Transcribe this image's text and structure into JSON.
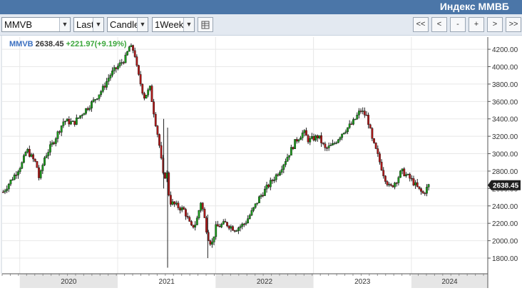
{
  "window": {
    "title": "Индекс ММВБ"
  },
  "toolbar": {
    "symbol": "MMVB",
    "price_type": "Last",
    "chart_type": "Candle",
    "interval": "1Week",
    "settings_icon": "table-icon",
    "nav_buttons": [
      "<<",
      "<",
      "-",
      "+",
      ">",
      ">>"
    ]
  },
  "legend": {
    "symbol": "MMVB",
    "last": "2638.45",
    "change": "+221.97(+9.19%)",
    "symbol_color": "#3a6fc0",
    "change_color": "#3aa63a"
  },
  "colors": {
    "up": "#1b9c1b",
    "down": "#b01818",
    "wick": "#222222",
    "grid": "#e8e8e8",
    "axis": "#555555",
    "band": "#e6e6e6"
  },
  "chart_data": {
    "type": "candlestick",
    "title": "",
    "y_ticks": [
      1800,
      2000,
      2200,
      2400,
      2600,
      2800,
      3000,
      3200,
      3400,
      3600,
      3800,
      4000,
      4200
    ],
    "y_tick_labels": [
      "1800.00",
      "2000.00",
      "2200.00",
      "2400.00",
      "2600.00",
      "2800.00",
      "3000.00",
      "3200.00",
      "3400.00",
      "3600.00",
      "3800.00",
      "4000.00",
      "4200.00"
    ],
    "ylim": [
      1620,
      4340
    ],
    "xlim": [
      2019.82,
      2024.78
    ],
    "x_year_labels": [
      "2020",
      "2021",
      "2022",
      "2023",
      "2024"
    ],
    "last_price_label": "2638.45",
    "last_price": 2638.45,
    "grid": true,
    "price_path": [
      [
        2019.83,
        2560
      ],
      [
        2019.95,
        2760
      ],
      [
        2020.03,
        2900
      ],
      [
        2020.07,
        3050
      ],
      [
        2020.12,
        2960
      ],
      [
        2020.17,
        2880
      ],
      [
        2020.2,
        2700
      ],
      [
        2020.25,
        2950
      ],
      [
        2020.35,
        3150
      ],
      [
        2020.45,
        3380
      ],
      [
        2020.55,
        3350
      ],
      [
        2020.65,
        3480
      ],
      [
        2020.75,
        3600
      ],
      [
        2020.85,
        3750
      ],
      [
        2020.92,
        3900
      ],
      [
        2021.0,
        4000
      ],
      [
        2021.08,
        4100
      ],
      [
        2021.12,
        4230
      ],
      [
        2021.17,
        4180
      ],
      [
        2021.2,
        3950
      ],
      [
        2021.27,
        3650
      ],
      [
        2021.33,
        3750
      ],
      [
        2021.38,
        3400
      ],
      [
        2021.42,
        3150
      ],
      [
        2021.47,
        2700
      ],
      [
        2021.5,
        2800
      ],
      [
        2021.53,
        2450
      ],
      [
        2021.6,
        2400
      ],
      [
        2021.68,
        2350
      ],
      [
        2021.75,
        2150
      ],
      [
        2021.8,
        2200
      ],
      [
        2021.85,
        2450
      ],
      [
        2021.88,
        2300
      ],
      [
        2021.92,
        2050
      ],
      [
        2021.96,
        1950
      ],
      [
        2022.0,
        2150
      ],
      [
        2022.1,
        2200
      ],
      [
        2022.2,
        2130
      ],
      [
        2022.3,
        2200
      ],
      [
        2022.38,
        2350
      ],
      [
        2022.45,
        2500
      ],
      [
        2022.55,
        2650
      ],
      [
        2022.65,
        2800
      ],
      [
        2022.75,
        3000
      ],
      [
        2022.82,
        3150
      ],
      [
        2022.9,
        3250
      ],
      [
        2022.95,
        3150
      ],
      [
        2023.05,
        3200
      ],
      [
        2023.12,
        3050
      ],
      [
        2023.2,
        3100
      ],
      [
        2023.3,
        3250
      ],
      [
        2023.4,
        3350
      ],
      [
        2023.48,
        3500
      ],
      [
        2023.55,
        3420
      ],
      [
        2023.6,
        3150
      ],
      [
        2023.65,
        3000
      ],
      [
        2023.72,
        2750
      ],
      [
        2023.78,
        2600
      ],
      [
        2023.85,
        2700
      ],
      [
        2023.9,
        2800
      ],
      [
        2024.0,
        2700
      ],
      [
        2024.08,
        2580
      ],
      [
        2024.12,
        2540
      ],
      [
        2024.18,
        2640
      ]
    ],
    "spikes": [
      {
        "x": 2021.51,
        "high": 3300,
        "low": 1690
      },
      {
        "x": 2021.47,
        "high": 3400,
        "low": 2600
      },
      {
        "x": 2021.92,
        "high": 2300,
        "low": 1800
      }
    ]
  }
}
